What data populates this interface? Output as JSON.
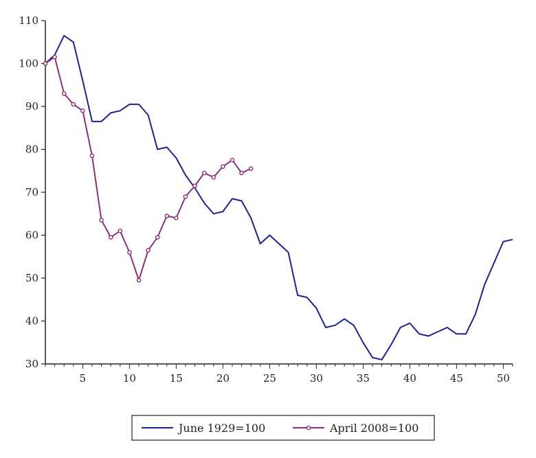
{
  "chart_data": {
    "type": "line",
    "title": "",
    "xlabel": "",
    "ylabel": "",
    "xlim": [
      1,
      51
    ],
    "ylim": [
      30,
      110
    ],
    "x_ticks": [
      5,
      10,
      15,
      20,
      25,
      30,
      35,
      40,
      45,
      50
    ],
    "y_ticks": [
      30,
      40,
      50,
      60,
      70,
      80,
      90,
      100,
      110
    ],
    "grid": false,
    "legend_position": "bottom",
    "series": [
      {
        "name": "June 1929=100",
        "color": "#1f1f8f",
        "marker": "none",
        "x": [
          1,
          2,
          3,
          4,
          5,
          6,
          7,
          8,
          9,
          10,
          11,
          12,
          13,
          14,
          15,
          16,
          17,
          18,
          19,
          20,
          21,
          22,
          23,
          24,
          25,
          26,
          27,
          28,
          29,
          30,
          31,
          32,
          33,
          34,
          35,
          36,
          37,
          38,
          39,
          40,
          41,
          42,
          43,
          44,
          45,
          46,
          47,
          48,
          49,
          50,
          51
        ],
        "values": [
          100,
          102,
          106.5,
          105,
          96,
          86.5,
          86.5,
          88.5,
          89,
          90.5,
          90.5,
          88,
          80,
          80.5,
          78,
          74,
          71,
          67.5,
          65,
          65.5,
          68.5,
          68,
          64,
          58,
          60,
          58,
          56,
          46,
          45.5,
          43,
          38.5,
          39,
          40.5,
          39,
          35,
          31.5,
          31,
          34.5,
          38.5,
          39.5,
          37,
          36.5,
          37.5,
          38.5,
          37,
          37,
          41.5,
          48.5,
          53.5,
          58.5,
          59
        ]
      },
      {
        "name": "April 2008=100",
        "color": "#8a2f7a",
        "marker": "circle",
        "x": [
          1,
          2,
          3,
          4,
          5,
          6,
          7,
          8,
          9,
          10,
          11,
          12,
          13,
          14,
          15,
          16,
          17,
          18,
          19,
          20,
          21,
          22,
          23
        ],
        "values": [
          100,
          101.5,
          93,
          90.5,
          89,
          78.5,
          63.5,
          59.5,
          61,
          56,
          49.5,
          56.5,
          59.5,
          64.5,
          64,
          69,
          71.5,
          74.5,
          73.5,
          76,
          77.5,
          74.5,
          75.5
        ]
      }
    ]
  }
}
